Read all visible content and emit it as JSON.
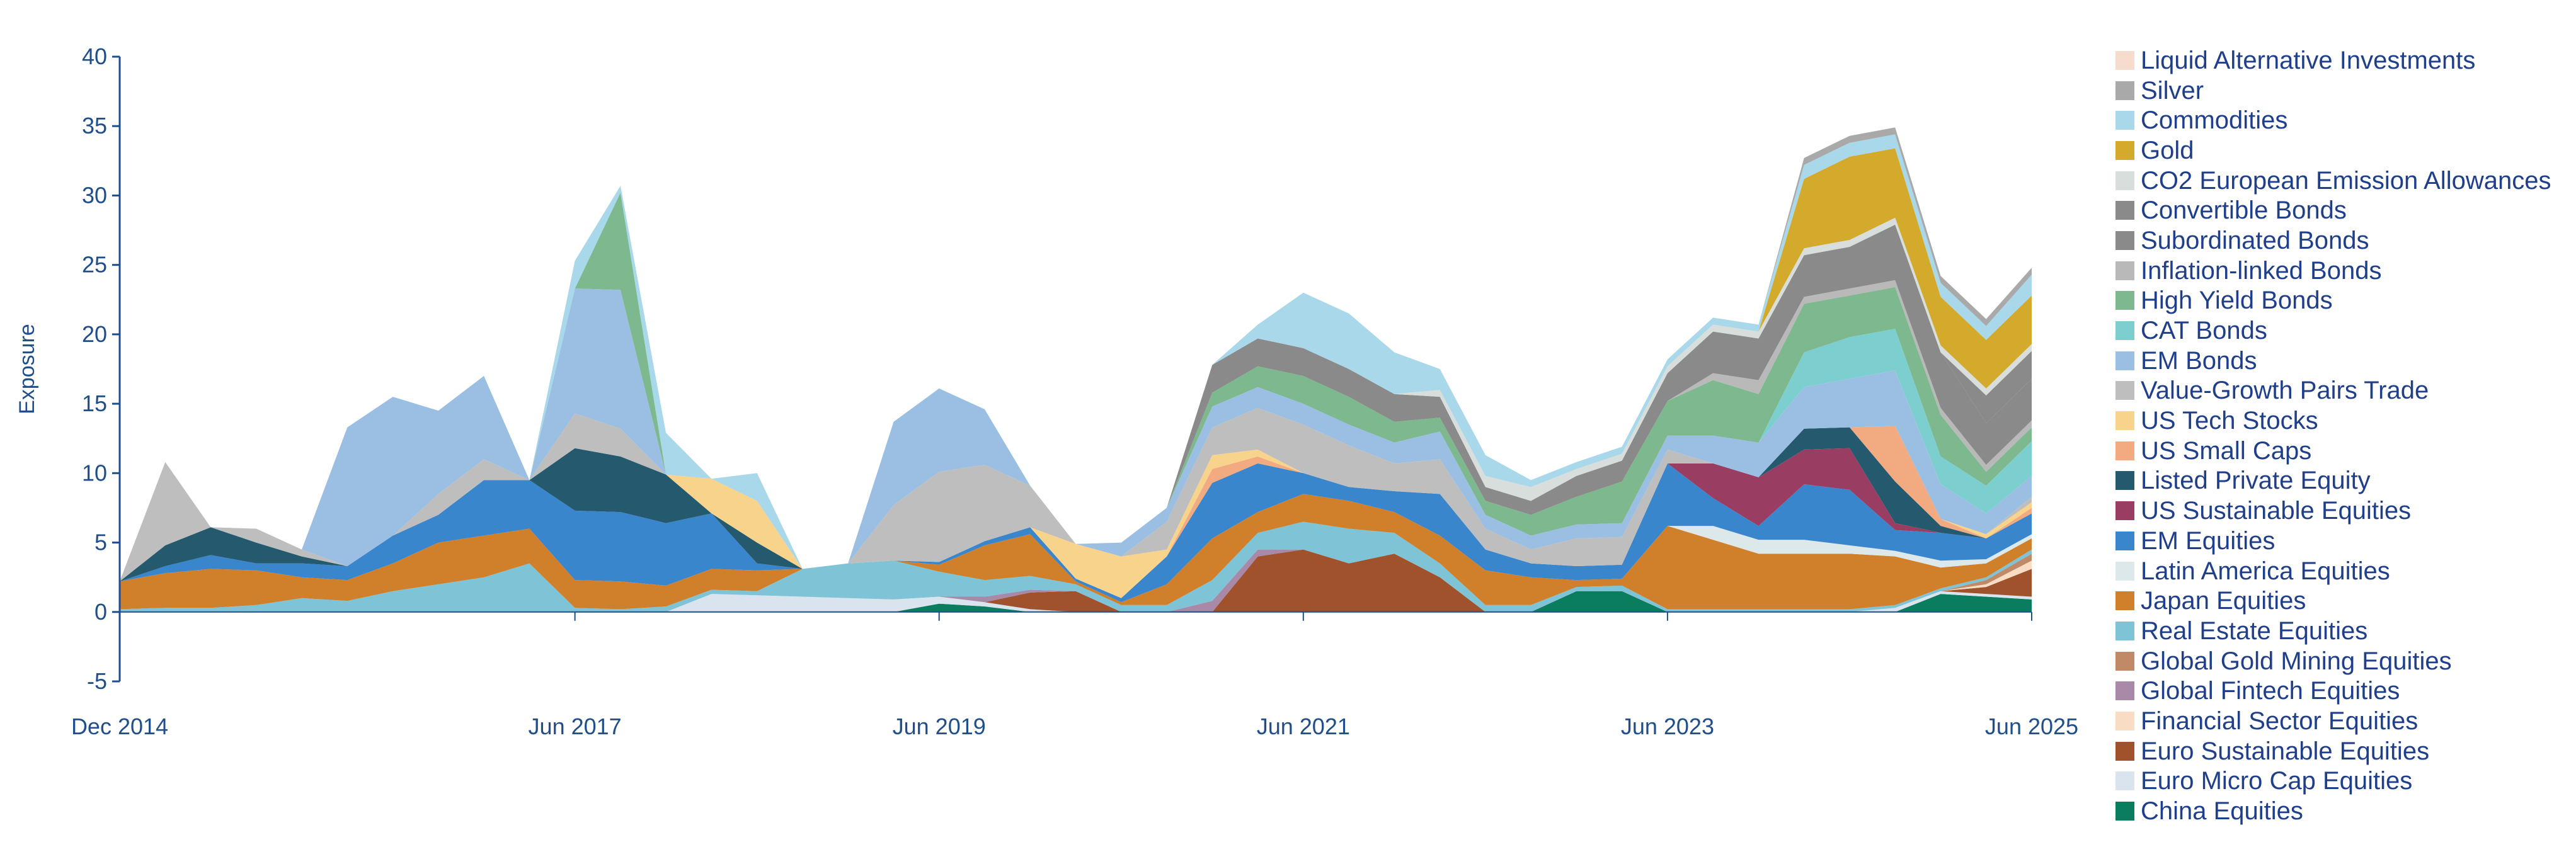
{
  "chart_data": {
    "type": "area",
    "ylabel": "Exposure",
    "ylim": [
      -5,
      40
    ],
    "y_ticks": [
      "-5",
      "0",
      "5",
      "10",
      "15",
      "20",
      "25",
      "30",
      "35",
      "40"
    ],
    "x_tick_labels": [
      "Dec 2014",
      "Jun 2017",
      "Jun 2019",
      "Jun 2021",
      "Jun 2023",
      "Jun 2025"
    ],
    "x_tick_years": [
      2014.92,
      2017.42,
      2019.42,
      2021.42,
      2023.42,
      2025.42
    ],
    "xlim": [
      2014.92,
      2025.42
    ],
    "legend_position": "right",
    "x": [
      2014.92,
      2015.17,
      2015.42,
      2015.67,
      2015.92,
      2016.17,
      2016.42,
      2016.67,
      2016.92,
      2017.17,
      2017.42,
      2017.67,
      2017.92,
      2018.17,
      2018.42,
      2018.67,
      2018.92,
      2019.17,
      2019.42,
      2019.67,
      2019.92,
      2020.17,
      2020.42,
      2020.67,
      2020.92,
      2021.17,
      2021.42,
      2021.67,
      2021.92,
      2022.17,
      2022.42,
      2022.67,
      2022.92,
      2023.17,
      2023.42,
      2023.67,
      2023.92,
      2024.17,
      2024.42,
      2024.67,
      2024.92,
      2025.17,
      2025.42
    ],
    "series": [
      {
        "name": "China Equities",
        "color": "#0a7d5e",
        "values": [
          0,
          0,
          0,
          0,
          0,
          0,
          0,
          0,
          0,
          0,
          0,
          0,
          0,
          0,
          0,
          0,
          0,
          0,
          0.6,
          0.4,
          0,
          0,
          0,
          0,
          0,
          0,
          0,
          0,
          0,
          0,
          0,
          0,
          1.5,
          1.5,
          0,
          0,
          0,
          0,
          0,
          0,
          1.3,
          1.1,
          0.9
        ]
      },
      {
        "name": "Euro Micro Cap Equities",
        "color": "#d9e4ee",
        "values": [
          0,
          0,
          0,
          0,
          0,
          0,
          0,
          0,
          0,
          0,
          0,
          0,
          0,
          1.3,
          1.2,
          1.1,
          1.0,
          0.9,
          0.5,
          0.3,
          0.2,
          0,
          0,
          0,
          0,
          0,
          0,
          0,
          0,
          0,
          0,
          0,
          0,
          0,
          0,
          0,
          0,
          0,
          0,
          0.3,
          0.2,
          0.2,
          0.2
        ]
      },
      {
        "name": "Euro Sustainable Equities",
        "color": "#a0522d",
        "values": [
          0,
          0,
          0,
          0,
          0,
          0,
          0,
          0,
          0,
          0,
          0,
          0,
          0,
          0,
          0,
          0,
          0,
          0,
          0,
          0,
          1.2,
          1.5,
          0,
          0,
          0,
          4.0,
          4.5,
          3.5,
          4.2,
          2.5,
          0,
          0,
          0,
          0,
          0,
          0,
          0,
          0,
          0,
          0,
          0,
          0.5,
          2.0
        ]
      },
      {
        "name": "Financial Sector Equities",
        "color": "#f8dcc4",
        "values": [
          0,
          0,
          0,
          0,
          0,
          0,
          0,
          0,
          0,
          0,
          0,
          0,
          0,
          0,
          0,
          0,
          0,
          0,
          0,
          0,
          0,
          0,
          0,
          0,
          0,
          0,
          0,
          0,
          0,
          0,
          0,
          0,
          0,
          0,
          0,
          0,
          0,
          0,
          0,
          0,
          0,
          0.2,
          0.6
        ]
      },
      {
        "name": "Global Fintech Equities",
        "color": "#a88aa8",
        "values": [
          0,
          0,
          0,
          0,
          0,
          0,
          0,
          0,
          0,
          0,
          0,
          0,
          0,
          0,
          0,
          0,
          0,
          0,
          0,
          0.4,
          0.2,
          0,
          0,
          0,
          0.8,
          0.5,
          0,
          0,
          0,
          0,
          0,
          0,
          0,
          0,
          0,
          0,
          0,
          0,
          0,
          0,
          0,
          0,
          0
        ]
      },
      {
        "name": "Global Gold Mining Equities",
        "color": "#c08a66",
        "values": [
          0,
          0,
          0,
          0,
          0,
          0,
          0,
          0,
          0,
          0,
          0,
          0,
          0,
          0,
          0,
          0,
          0,
          0,
          0,
          0,
          0,
          0,
          0,
          0,
          0,
          0,
          0,
          0,
          0,
          0,
          0,
          0,
          0,
          0,
          0,
          0,
          0,
          0,
          0,
          0,
          0,
          0.3,
          0.5
        ]
      },
      {
        "name": "Real Estate Equities",
        "color": "#7ec3d6",
        "values": [
          0.2,
          0.3,
          0.3,
          0.5,
          1.0,
          0.8,
          1.5,
          2.0,
          2.5,
          3.5,
          0.3,
          0.2,
          0.4,
          0.3,
          0.3,
          2.0,
          2.5,
          2.8,
          1.8,
          1.2,
          1.0,
          0.5,
          0.5,
          0.5,
          1.5,
          1.2,
          2.0,
          2.5,
          1.5,
          1.0,
          0.5,
          0.5,
          0.3,
          0.4,
          0.2,
          0.2,
          0.2,
          0.2,
          0.2,
          0.2,
          0.2,
          0.2,
          0.3
        ]
      },
      {
        "name": "Japan Equities",
        "color": "#d07f2a",
        "values": [
          2.0,
          2.5,
          2.8,
          2.5,
          1.5,
          1.5,
          2.0,
          3.0,
          3.0,
          2.5,
          2.0,
          2.0,
          1.5,
          1.5,
          1.5,
          0,
          0,
          0,
          0.5,
          2.5,
          3.0,
          0.2,
          0.2,
          1.5,
          3.0,
          1.5,
          2.0,
          2.0,
          1.5,
          2.0,
          2.5,
          2.0,
          0.5,
          0.5,
          6.0,
          5.0,
          4.0,
          4.0,
          4.0,
          3.5,
          1.5,
          1.0,
          0.8
        ]
      },
      {
        "name": "Latin America Equities",
        "color": "#dde8ea",
        "values": [
          0,
          0,
          0,
          0,
          0,
          0,
          0,
          0,
          0,
          0,
          0,
          0,
          0,
          0,
          0,
          0,
          0,
          0,
          0,
          0,
          0,
          0,
          0,
          0,
          0,
          0,
          0,
          0,
          0,
          0,
          0,
          0,
          0,
          0,
          0,
          1.0,
          1.0,
          1.0,
          0.6,
          0.4,
          0.5,
          0.3,
          0.3
        ]
      },
      {
        "name": "EM Equities",
        "color": "#3a86cc",
        "values": [
          0,
          0.5,
          1.0,
          0.5,
          1.0,
          1.0,
          2.0,
          2.0,
          4.0,
          3.5,
          5.0,
          5.0,
          4.5,
          4.0,
          0.5,
          0,
          0,
          0,
          0.2,
          0.3,
          0.5,
          0.2,
          0.3,
          2.0,
          4.0,
          3.5,
          1.5,
          1.0,
          1.5,
          3.0,
          1.5,
          1.0,
          1.0,
          1.0,
          4.5,
          2.0,
          1.0,
          4.0,
          4.0,
          1.5,
          2.0,
          1.5,
          1.5
        ]
      },
      {
        "name": "US Sustainable Equities",
        "color": "#9a3d62",
        "values": [
          0,
          0,
          0,
          0,
          0,
          0,
          0,
          0,
          0,
          0,
          0,
          0,
          0,
          0,
          0,
          0,
          0,
          0,
          0,
          0,
          0,
          0,
          0,
          0,
          0,
          0,
          0,
          0,
          0,
          0,
          0,
          0,
          0,
          0,
          0,
          2.5,
          3.5,
          2.5,
          3.0,
          0.5,
          0,
          0,
          0
        ]
      },
      {
        "name": "Listed Private Equity",
        "color": "#255a6e",
        "values": [
          0,
          1.5,
          2.0,
          1.5,
          0.5,
          0,
          0,
          0,
          0,
          0,
          4.5,
          4.0,
          3.5,
          0,
          1.5,
          0,
          0,
          0,
          0,
          0,
          0,
          0,
          0,
          0,
          0,
          0,
          0,
          0,
          0,
          0,
          0,
          0,
          0,
          0,
          0,
          0,
          0,
          1.5,
          1.5,
          3.0,
          0.5,
          0,
          0
        ]
      },
      {
        "name": "US Small Caps",
        "color": "#f2ab80",
        "values": [
          0,
          0,
          0,
          0,
          0,
          0,
          0,
          0,
          0,
          0,
          0,
          0,
          0,
          0,
          0,
          0,
          0,
          0,
          0,
          0,
          0,
          0,
          0,
          0,
          1.0,
          0.5,
          0,
          0,
          0,
          0,
          0,
          0,
          0,
          0,
          0,
          0,
          0,
          0,
          0,
          4.0,
          0.5,
          0,
          0.4
        ]
      },
      {
        "name": "US Tech Stocks",
        "color": "#f8d38c",
        "values": [
          0,
          0,
          0,
          0,
          0,
          0,
          0,
          0,
          0,
          0,
          0,
          0,
          0,
          2.5,
          3.0,
          0,
          0,
          0,
          0,
          0,
          0,
          2.5,
          3.0,
          0.5,
          1.0,
          0.5,
          0,
          0,
          0,
          0,
          0,
          0,
          0,
          0,
          0,
          0,
          0,
          0,
          0,
          0,
          0,
          0.3,
          0.4
        ]
      },
      {
        "name": "Value-Growth Pairs Trade",
        "color": "#bebebe",
        "values": [
          0,
          6.0,
          0,
          1.0,
          0.5,
          0,
          0,
          1.5,
          1.5,
          0,
          2.5,
          2.0,
          0,
          0,
          0,
          0,
          0,
          4.0,
          6.5,
          5.5,
          3.0,
          0,
          0,
          2.0,
          2.0,
          3.0,
          3.5,
          3.0,
          2.0,
          2.5,
          1.5,
          1.0,
          2.0,
          2.0,
          1.0,
          0,
          0,
          0,
          0,
          0,
          0,
          0,
          0.4
        ]
      },
      {
        "name": "EM Bonds",
        "color": "#9bbfe2",
        "values": [
          0,
          0,
          0,
          0,
          0,
          10.0,
          10.0,
          6.0,
          6.0,
          0,
          9.0,
          10.0,
          0,
          0,
          0,
          0,
          0,
          6.0,
          6.0,
          4.0,
          0,
          0,
          1.0,
          1.0,
          1.5,
          1.5,
          1.5,
          1.5,
          1.5,
          2.0,
          1.0,
          1.0,
          1.0,
          1.0,
          1.0,
          2.0,
          2.5,
          3.0,
          3.5,
          4.0,
          2.5,
          1.5,
          1.5
        ]
      },
      {
        "name": "CAT Bonds",
        "color": "#7dcfcf",
        "values": [
          0,
          0,
          0,
          0,
          0,
          0,
          0,
          0,
          0,
          0,
          0,
          0,
          0,
          0,
          0,
          0,
          0,
          0,
          0,
          0,
          0,
          0,
          0,
          0,
          0,
          0,
          0,
          0,
          0,
          0,
          0,
          0,
          0,
          0,
          0,
          0,
          0,
          2.5,
          3.0,
          3.0,
          2.0,
          2.0,
          2.5
        ]
      },
      {
        "name": "High Yield Bonds",
        "color": "#7db88e",
        "values": [
          0,
          0,
          0,
          0,
          0,
          0,
          0,
          0,
          0,
          0,
          0,
          7.0,
          0,
          0,
          0,
          0,
          0,
          0,
          0,
          0,
          0,
          0,
          0,
          0,
          1.0,
          1.5,
          2.0,
          2.0,
          1.5,
          1.0,
          1.0,
          1.5,
          2.0,
          3.0,
          2.5,
          4.0,
          3.5,
          3.5,
          3.0,
          3.0,
          3.0,
          1.0,
          1.0
        ]
      },
      {
        "name": "Inflation-linked Bonds",
        "color": "#b9b9b9",
        "values": [
          0,
          0,
          0,
          0,
          0,
          0,
          0,
          0,
          0,
          0,
          0,
          0,
          0,
          0,
          0,
          0,
          0,
          0,
          0,
          0,
          0,
          0,
          0,
          0,
          0,
          0,
          0,
          0,
          0,
          0,
          0,
          0,
          0,
          0,
          0,
          0.5,
          1.0,
          0.5,
          0.5,
          0.5,
          0.5,
          0.5,
          0.5
        ]
      },
      {
        "name": "Subordinated Bonds",
        "color": "#8a8a8a",
        "values": [
          0,
          0,
          0,
          0,
          0,
          0,
          0,
          0,
          0,
          0,
          0,
          0,
          0,
          0,
          0,
          0,
          0,
          0,
          0,
          0,
          0,
          0,
          0,
          0,
          2.0,
          2.0,
          2.0,
          2.0,
          2.0,
          1.5,
          1.0,
          1.0,
          1.5,
          1.5,
          2.0,
          3.0,
          3.0,
          3.0,
          3.0,
          4.0,
          4.0,
          3.0,
          3.0
        ]
      },
      {
        "name": "Convertible Bonds",
        "color": "#8a8a8a",
        "values": [
          0,
          0,
          0,
          0,
          0,
          0,
          0,
          0,
          0,
          0,
          0,
          0,
          0,
          0,
          0,
          0,
          0,
          0,
          0,
          0,
          0,
          0,
          0,
          0,
          0,
          0,
          0,
          0,
          0,
          0,
          0,
          0,
          0,
          0,
          0,
          0,
          0,
          0,
          0,
          0,
          0,
          2.0,
          2.0
        ]
      },
      {
        "name": "CO2 European Emission Allowances",
        "color": "#d8dedb",
        "values": [
          0,
          0,
          0,
          0,
          0,
          0,
          0,
          0,
          0,
          0,
          0,
          0,
          0,
          0,
          0,
          0,
          0,
          0,
          0,
          0,
          0,
          0,
          0,
          0,
          0,
          0,
          0,
          0,
          0,
          0.5,
          0.8,
          1.0,
          0.5,
          0.5,
          0.5,
          0.5,
          0.5,
          0.5,
          0.5,
          0.5,
          0.5,
          0.5,
          0.5
        ]
      },
      {
        "name": "Gold",
        "color": "#d4aa2c",
        "values": [
          0,
          0,
          0,
          0,
          0,
          0,
          0,
          0,
          0,
          0,
          0,
          0,
          0,
          0,
          0,
          0,
          0,
          0,
          0,
          0,
          0,
          0,
          0,
          0,
          0,
          0,
          0,
          0,
          0,
          0,
          0,
          0,
          0,
          0,
          0,
          0,
          0,
          5.0,
          6.0,
          5.0,
          3.5,
          3.5,
          3.5
        ]
      },
      {
        "name": "Commodities",
        "color": "#a8d8ea",
        "values": [
          0,
          0,
          0,
          0,
          0,
          0,
          0,
          0,
          0,
          0,
          2.0,
          0.5,
          3.0,
          0,
          2.0,
          0,
          0,
          0,
          0,
          0,
          0,
          0,
          0,
          0,
          0,
          1.0,
          4.0,
          4.0,
          3.0,
          1.5,
          1.5,
          0.5,
          0.5,
          0.5,
          0.5,
          0.5,
          0.5,
          1.0,
          1.0,
          1.0,
          1.0,
          1.0,
          1.5
        ]
      },
      {
        "name": "Silver",
        "color": "#a9a9a9",
        "values": [
          0,
          0,
          0,
          0,
          0,
          0,
          0,
          0,
          0,
          0,
          0,
          0,
          0,
          0,
          0,
          0,
          0,
          0,
          0,
          0,
          0,
          0,
          0,
          0,
          0,
          0,
          0,
          0,
          0,
          0,
          0,
          0,
          0,
          0,
          0,
          0,
          0,
          0.5,
          0.5,
          0.5,
          0.5,
          0.5,
          0.5
        ]
      },
      {
        "name": "Liquid Alternative Investments",
        "color": "#f5dccd",
        "values": [
          0,
          0,
          0,
          0,
          0,
          0,
          0,
          0,
          0,
          0,
          0,
          0,
          0,
          0,
          0,
          0,
          0,
          0,
          0,
          0,
          0,
          0,
          0,
          0,
          0,
          0,
          0,
          0,
          0,
          0,
          0,
          0,
          0,
          0,
          0,
          0,
          0,
          0,
          0,
          0,
          0,
          0,
          0
        ]
      }
    ]
  }
}
